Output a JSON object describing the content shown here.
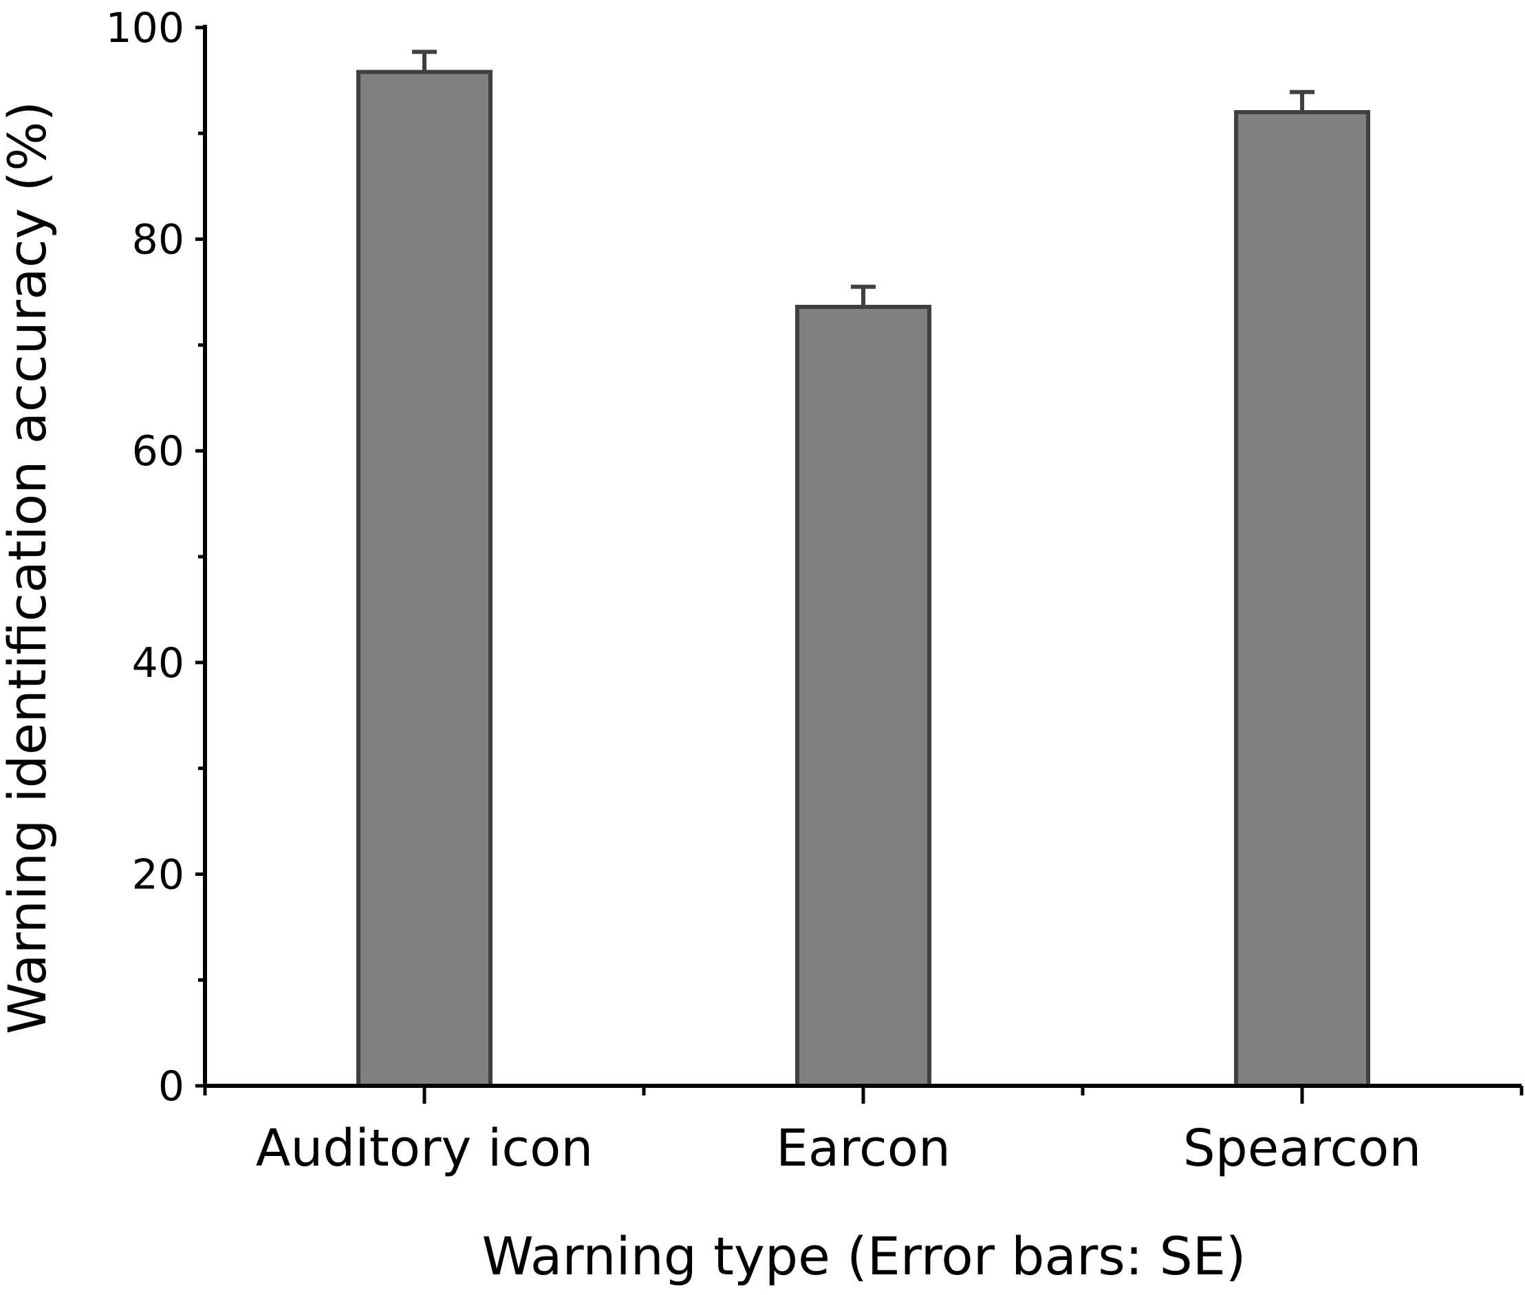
{
  "chart_data": {
    "type": "bar",
    "categories": [
      "Auditory icon",
      "Earcon",
      "Spearcon"
    ],
    "values": [
      95.8,
      73.6,
      92.0
    ],
    "error_se": [
      1.9,
      1.9,
      1.9
    ],
    "xlabel": "Warning type (Error bars: SE)",
    "ylabel": "Warning identification accuracy (%)",
    "ylim": [
      0,
      100
    ],
    "yticks": [
      0,
      20,
      40,
      60,
      80,
      100
    ],
    "y_minor_step": 10,
    "grid": false,
    "legend": "none",
    "colors": {
      "bar_fill": "#808080",
      "bar_edge": "#404040",
      "axis": "#000000"
    }
  }
}
